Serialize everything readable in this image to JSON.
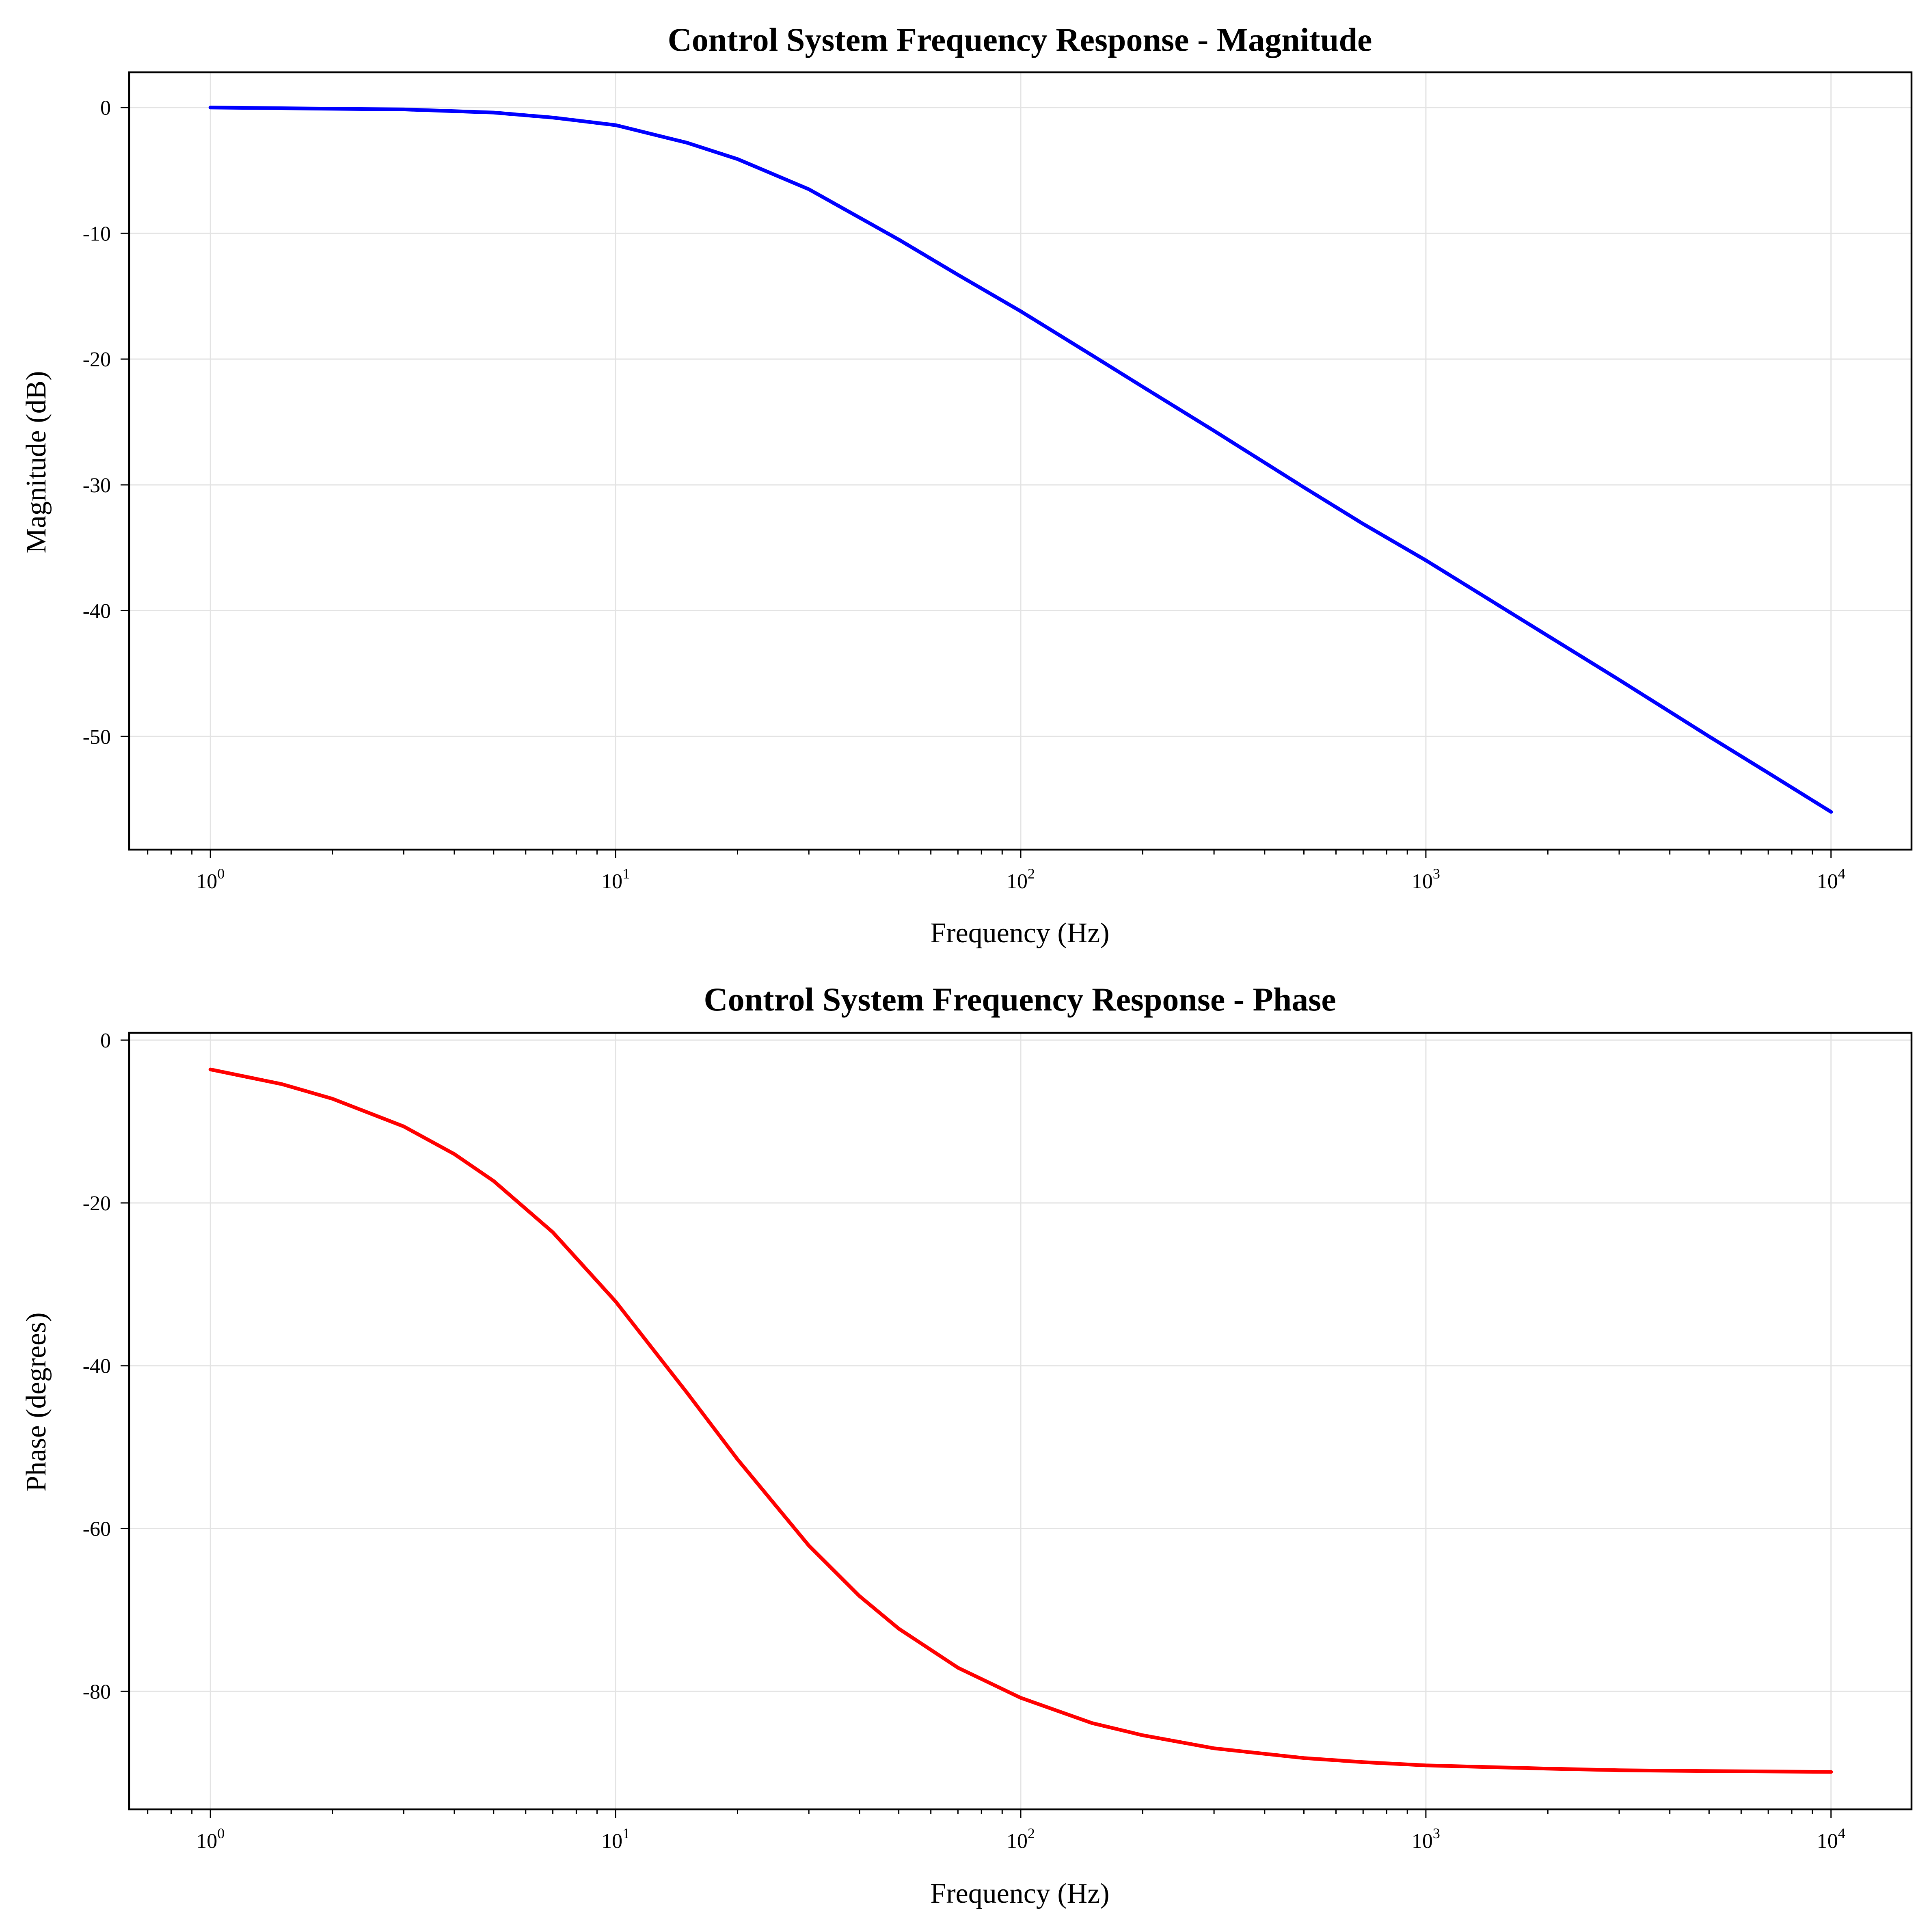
{
  "chart_data": [
    {
      "type": "line",
      "title": "Control System Frequency Response - Magnitude",
      "xlabel": "Frequency (Hz)",
      "ylabel": "Magnitude (dB)",
      "xscale": "log",
      "xlim": [
        0.63,
        15800
      ],
      "ylim": [
        -59,
        2.8
      ],
      "x_ticks": [
        {
          "base": "10",
          "exp": "0",
          "value": 1
        },
        {
          "base": "10",
          "exp": "1",
          "value": 10
        },
        {
          "base": "10",
          "exp": "2",
          "value": 100
        },
        {
          "base": "10",
          "exp": "3",
          "value": 1000
        },
        {
          "base": "10",
          "exp": "4",
          "value": 10000
        }
      ],
      "y_ticks": [
        {
          "label": "0",
          "value": 0
        },
        {
          "label": "-10",
          "value": -10
        },
        {
          "label": "-20",
          "value": -20
        },
        {
          "label": "-30",
          "value": -30
        },
        {
          "label": "-40",
          "value": -40
        },
        {
          "label": "-50",
          "value": -50
        }
      ],
      "grid": true,
      "series": [
        {
          "color": "#0000ff",
          "x": [
            1,
            2,
            3,
            5,
            7,
            10,
            15,
            20,
            30,
            50,
            70,
            100,
            150,
            200,
            300,
            500,
            700,
            1000,
            2000,
            3000,
            5000,
            7000,
            10000
          ],
          "y": [
            0.0,
            -0.1,
            -0.15,
            -0.4,
            -0.8,
            -1.4,
            -2.8,
            -4.1,
            -6.5,
            -10.5,
            -13.3,
            -16.2,
            -19.7,
            -22.2,
            -25.7,
            -30.2,
            -33.1,
            -36.0,
            -42.0,
            -45.5,
            -50.0,
            -52.9,
            -56.0
          ]
        }
      ]
    },
    {
      "type": "line",
      "title": "Control System Frequency Response - Phase",
      "xlabel": "Frequency (Hz)",
      "ylabel": "Phase (degrees)",
      "xscale": "log",
      "xlim": [
        0.63,
        15800
      ],
      "ylim": [
        -94.5,
        0.9
      ],
      "x_ticks": [
        {
          "base": "10",
          "exp": "0",
          "value": 1
        },
        {
          "base": "10",
          "exp": "1",
          "value": 10
        },
        {
          "base": "10",
          "exp": "2",
          "value": 100
        },
        {
          "base": "10",
          "exp": "3",
          "value": 1000
        },
        {
          "base": "10",
          "exp": "4",
          "value": 10000
        }
      ],
      "y_ticks": [
        {
          "label": "0",
          "value": 0
        },
        {
          "label": "-20",
          "value": -20
        },
        {
          "label": "-40",
          "value": -40
        },
        {
          "label": "-60",
          "value": -60
        },
        {
          "label": "-80",
          "value": -80
        }
      ],
      "grid": true,
      "series": [
        {
          "color": "#ff0000",
          "x": [
            1,
            1.5,
            2,
            3,
            4,
            5,
            7,
            10,
            15,
            20,
            30,
            40,
            50,
            70,
            100,
            150,
            200,
            300,
            500,
            700,
            1000,
            2000,
            3000,
            5000,
            10000
          ],
          "y": [
            -3.6,
            -5.4,
            -7.2,
            -10.6,
            -14.0,
            -17.3,
            -23.6,
            -32.1,
            -43.3,
            -51.5,
            -62.1,
            -68.3,
            -72.3,
            -77.1,
            -80.8,
            -83.9,
            -85.4,
            -87.0,
            -88.2,
            -88.7,
            -89.1,
            -89.5,
            -89.7,
            -89.8,
            -89.9
          ]
        }
      ]
    }
  ]
}
